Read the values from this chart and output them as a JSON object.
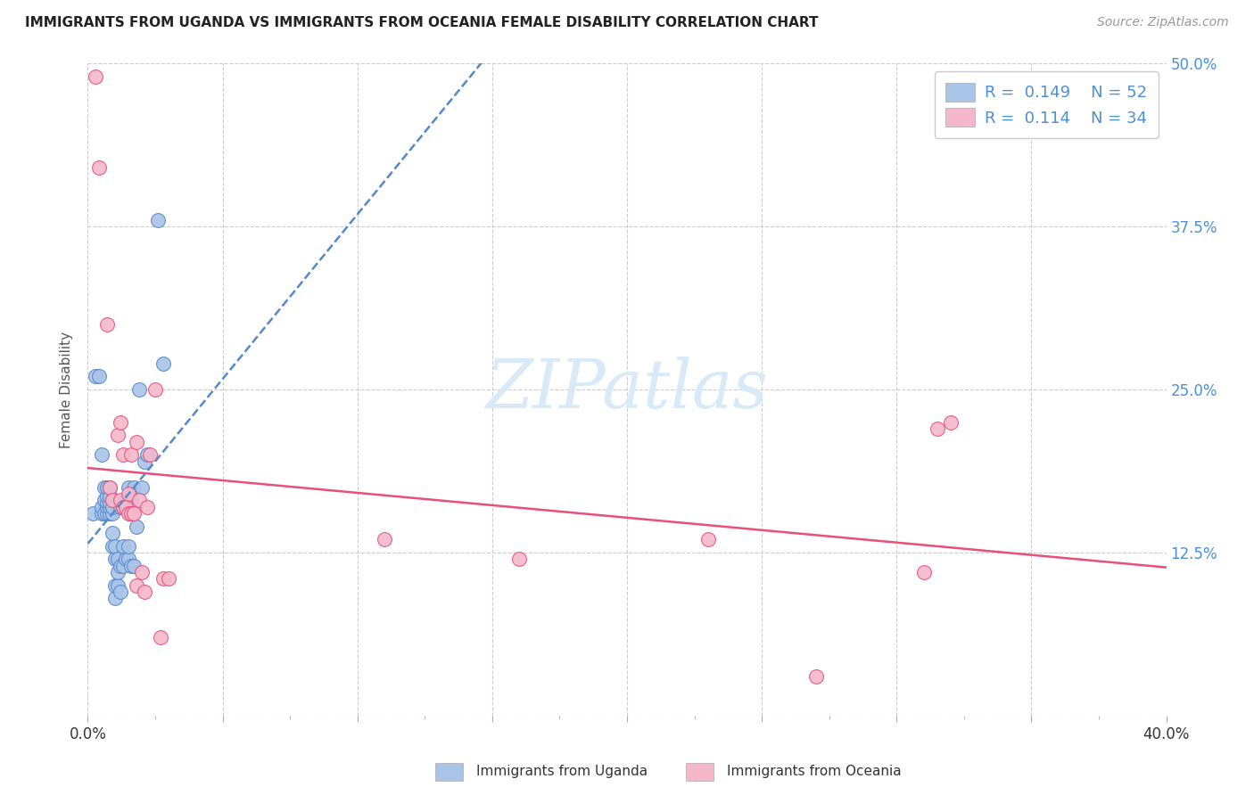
{
  "title": "IMMIGRANTS FROM UGANDA VS IMMIGRANTS FROM OCEANIA FEMALE DISABILITY CORRELATION CHART",
  "source": "Source: ZipAtlas.com",
  "ylabel": "Female Disability",
  "xlim": [
    0.0,
    0.4
  ],
  "ylim": [
    0.0,
    0.5
  ],
  "uganda_color": "#aac4e8",
  "oceania_color": "#f5b8cb",
  "uganda_line_color": "#5588cc",
  "oceania_line_color": "#e8507a",
  "label_color": "#4a90d9",
  "R_uganda": 0.149,
  "N_uganda": 52,
  "R_oceania": 0.114,
  "N_oceania": 34,
  "uganda_points_x": [
    0.002,
    0.003,
    0.004,
    0.005,
    0.005,
    0.005,
    0.006,
    0.006,
    0.006,
    0.007,
    0.007,
    0.007,
    0.007,
    0.007,
    0.008,
    0.008,
    0.008,
    0.008,
    0.008,
    0.009,
    0.009,
    0.009,
    0.009,
    0.01,
    0.01,
    0.01,
    0.01,
    0.011,
    0.011,
    0.011,
    0.012,
    0.012,
    0.012,
    0.013,
    0.013,
    0.013,
    0.014,
    0.014,
    0.015,
    0.015,
    0.015,
    0.016,
    0.016,
    0.017,
    0.017,
    0.018,
    0.019,
    0.02,
    0.021,
    0.022,
    0.026,
    0.028
  ],
  "uganda_points_y": [
    0.155,
    0.26,
    0.26,
    0.155,
    0.16,
    0.2,
    0.155,
    0.165,
    0.175,
    0.155,
    0.16,
    0.163,
    0.168,
    0.175,
    0.155,
    0.16,
    0.163,
    0.168,
    0.175,
    0.13,
    0.14,
    0.155,
    0.16,
    0.09,
    0.1,
    0.12,
    0.13,
    0.1,
    0.11,
    0.12,
    0.095,
    0.115,
    0.16,
    0.115,
    0.13,
    0.16,
    0.12,
    0.165,
    0.12,
    0.13,
    0.175,
    0.115,
    0.165,
    0.115,
    0.175,
    0.145,
    0.25,
    0.175,
    0.195,
    0.2,
    0.38,
    0.27
  ],
  "oceania_points_x": [
    0.003,
    0.004,
    0.007,
    0.008,
    0.009,
    0.011,
    0.012,
    0.012,
    0.013,
    0.013,
    0.014,
    0.015,
    0.015,
    0.016,
    0.016,
    0.017,
    0.018,
    0.018,
    0.019,
    0.02,
    0.021,
    0.022,
    0.023,
    0.025,
    0.027,
    0.028,
    0.03,
    0.11,
    0.16,
    0.23,
    0.27,
    0.31,
    0.315,
    0.32
  ],
  "oceania_points_y": [
    0.49,
    0.42,
    0.3,
    0.175,
    0.165,
    0.215,
    0.165,
    0.225,
    0.16,
    0.2,
    0.16,
    0.155,
    0.17,
    0.155,
    0.2,
    0.155,
    0.1,
    0.21,
    0.165,
    0.11,
    0.095,
    0.16,
    0.2,
    0.25,
    0.06,
    0.105,
    0.105,
    0.135,
    0.12,
    0.135,
    0.03,
    0.11,
    0.22,
    0.225
  ]
}
